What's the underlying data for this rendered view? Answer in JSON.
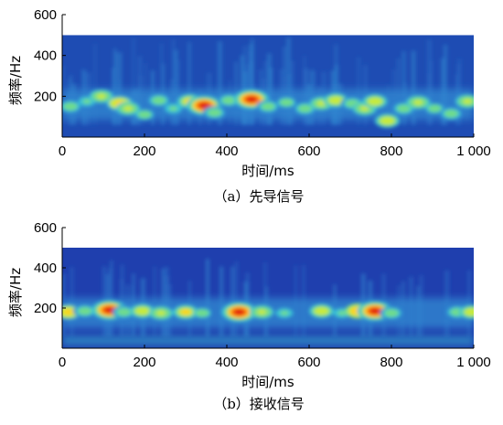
{
  "chart_data": [
    {
      "type": "heatmap",
      "caption": "（a）先导信号",
      "xlabel": "时间/ms",
      "ylabel": "频率/Hz",
      "xlim": [
        0,
        1000
      ],
      "ylim": [
        0,
        600
      ],
      "data_ymax": 500,
      "xticks": [
        0,
        200,
        400,
        600,
        800,
        1000
      ],
      "xtick_labels": [
        "0",
        "200",
        "400",
        "600",
        "800",
        "1 000"
      ],
      "yticks": [
        200,
        400,
        600
      ],
      "ytick_labels": [
        "200",
        "400",
        "600"
      ],
      "colormap": [
        "#0a1f8f",
        "#1a4fb8",
        "#2f86d0",
        "#39c1d6",
        "#6fdc8a",
        "#c8ea3a",
        "#ffd21a",
        "#ff7a10",
        "#e01a0a"
      ],
      "background_color": "#1e4cb3",
      "band_center_hz": 165,
      "hotspots": [
        {
          "t": 20,
          "f": 150,
          "level": 0.55
        },
        {
          "t": 60,
          "f": 175,
          "level": 0.45
        },
        {
          "t": 95,
          "f": 200,
          "level": 0.6
        },
        {
          "t": 140,
          "f": 165,
          "level": 0.75
        },
        {
          "t": 160,
          "f": 140,
          "level": 0.6
        },
        {
          "t": 200,
          "f": 110,
          "level": 0.5
        },
        {
          "t": 235,
          "f": 180,
          "level": 0.55
        },
        {
          "t": 270,
          "f": 140,
          "level": 0.45
        },
        {
          "t": 310,
          "f": 175,
          "level": 0.7
        },
        {
          "t": 345,
          "f": 155,
          "level": 0.95
        },
        {
          "t": 370,
          "f": 120,
          "level": 0.55
        },
        {
          "t": 405,
          "f": 180,
          "level": 0.55
        },
        {
          "t": 460,
          "f": 185,
          "level": 0.95
        },
        {
          "t": 500,
          "f": 150,
          "level": 0.55
        },
        {
          "t": 545,
          "f": 170,
          "level": 0.5
        },
        {
          "t": 590,
          "f": 140,
          "level": 0.55
        },
        {
          "t": 630,
          "f": 165,
          "level": 0.6
        },
        {
          "t": 665,
          "f": 180,
          "level": 0.65
        },
        {
          "t": 705,
          "f": 165,
          "level": 0.55
        },
        {
          "t": 735,
          "f": 140,
          "level": 0.6
        },
        {
          "t": 760,
          "f": 175,
          "level": 0.65
        },
        {
          "t": 790,
          "f": 80,
          "level": 0.65
        },
        {
          "t": 830,
          "f": 140,
          "level": 0.55
        },
        {
          "t": 865,
          "f": 170,
          "level": 0.6
        },
        {
          "t": 905,
          "f": 140,
          "level": 0.5
        },
        {
          "t": 945,
          "f": 115,
          "level": 0.55
        },
        {
          "t": 985,
          "f": 175,
          "level": 0.6
        }
      ]
    },
    {
      "type": "heatmap",
      "caption": "（b）接收信号",
      "xlabel": "时间/ms",
      "ylabel": "频率/Hz",
      "xlim": [
        0,
        1000
      ],
      "ylim": [
        0,
        600
      ],
      "data_ymax": 500,
      "xticks": [
        0,
        200,
        400,
        600,
        800,
        1000
      ],
      "xtick_labels": [
        "0",
        "200",
        "400",
        "600",
        "800",
        "1 000"
      ],
      "yticks": [
        200,
        400,
        600
      ],
      "ytick_labels": [
        "200",
        "400",
        "600"
      ],
      "colormap": [
        "#0a1f8f",
        "#1a4fb8",
        "#2f86d0",
        "#39c1d6",
        "#6fdc8a",
        "#c8ea3a",
        "#ffd21a",
        "#ff7a10",
        "#e01a0a"
      ],
      "background_color": "#1f3fae",
      "band_center_hz": 180,
      "hotspots": [
        {
          "t": 15,
          "f": 180,
          "level": 0.75
        },
        {
          "t": 55,
          "f": 185,
          "level": 0.55
        },
        {
          "t": 115,
          "f": 190,
          "level": 0.95
        },
        {
          "t": 150,
          "f": 180,
          "level": 0.55
        },
        {
          "t": 195,
          "f": 185,
          "level": 0.65
        },
        {
          "t": 240,
          "f": 175,
          "level": 0.6
        },
        {
          "t": 300,
          "f": 180,
          "level": 0.7
        },
        {
          "t": 340,
          "f": 175,
          "level": 0.5
        },
        {
          "t": 430,
          "f": 180,
          "level": 0.95
        },
        {
          "t": 485,
          "f": 180,
          "level": 0.6
        },
        {
          "t": 540,
          "f": 175,
          "level": 0.45
        },
        {
          "t": 630,
          "f": 185,
          "level": 0.65
        },
        {
          "t": 680,
          "f": 175,
          "level": 0.45
        },
        {
          "t": 720,
          "f": 185,
          "level": 0.8
        },
        {
          "t": 760,
          "f": 185,
          "level": 0.95
        },
        {
          "t": 800,
          "f": 175,
          "level": 0.55
        },
        {
          "t": 960,
          "f": 180,
          "level": 0.55
        },
        {
          "t": 995,
          "f": 180,
          "level": 0.65
        }
      ],
      "low_band_hz": 40
    }
  ]
}
